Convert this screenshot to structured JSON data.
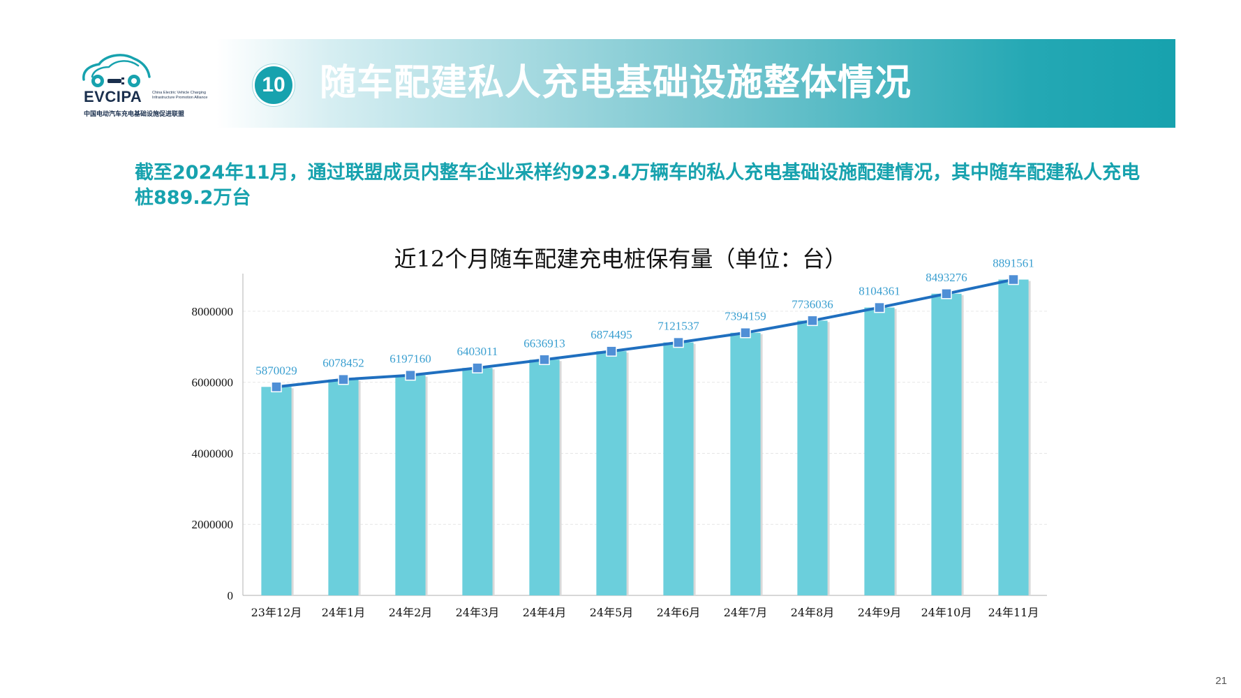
{
  "logo": {
    "acronym": "EVCIPA",
    "english": "China Electric Vehicle Charging Infrastructure Promotion Alliance",
    "chinese": "中国电动汽车充电基础设施促进联盟"
  },
  "banner": {
    "number": "10",
    "title": "随车配建私人充电基础设施整体情况"
  },
  "summary": "截至2024年11月，通过联盟成员内整车企业采样约923.4万辆车的私人充电基础设施配建情况，其中随车配建私人充电桩889.2万台",
  "page_number": "21",
  "colors": {
    "accent": "#17a2ae",
    "bar": "#6bcfdc",
    "line": "#1f6fbf",
    "marker": "#4f8fd6",
    "data_label": "#3a9fd0"
  },
  "chart_data": {
    "type": "bar",
    "title": "近12个月随车配建充电桩保有量（单位：台）",
    "categories": [
      "23年12月",
      "24年1月",
      "24年2月",
      "24年3月",
      "24年4月",
      "24年5月",
      "24年6月",
      "24年7月",
      "24年8月",
      "24年9月",
      "24年10月",
      "24年11月"
    ],
    "values": [
      5870029,
      6078452,
      6197160,
      6403011,
      6636913,
      6874495,
      7121537,
      7394159,
      7736036,
      8104361,
      8493276,
      8891561
    ],
    "line_overlay": true,
    "yticks": [
      0,
      2000000,
      4000000,
      6000000,
      8000000
    ],
    "ylim": [
      0,
      9000000
    ],
    "grid": true,
    "legend": "none"
  }
}
